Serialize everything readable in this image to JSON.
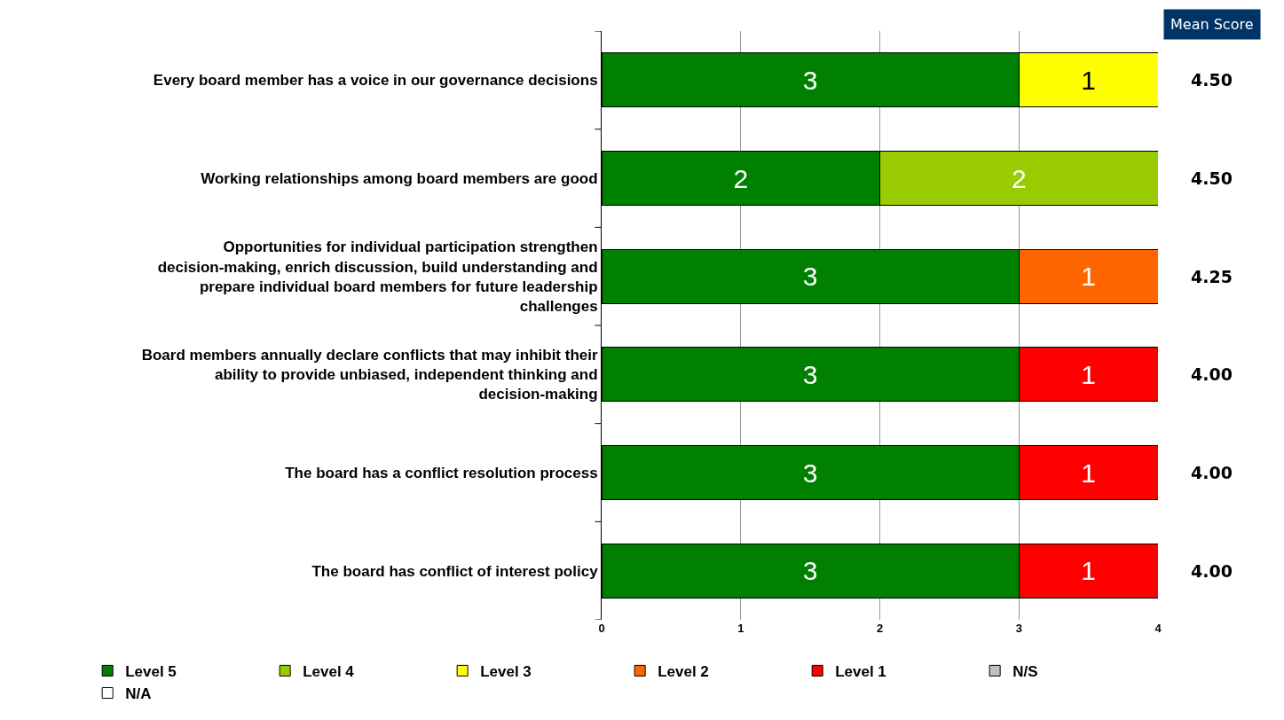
{
  "chart_data": {
    "type": "bar",
    "orientation": "horizontal",
    "stacked": true,
    "data_labels": true,
    "grid": "x",
    "legend": "bottom",
    "categories": [
      "Every board member has a voice in our governance decisions",
      "Working relationships among board members are good",
      "Opportunities for individual participation strengthen decision-making, enrich discussion, build understanding and prepare individual board members for future leadership challenges",
      "Board members annually declare conflicts that may inhibit their ability to provide unbiased, independent thinking and decision-making",
      "The board has a conflict resolution process",
      "The board has conflict of interest policy"
    ],
    "series": [
      {
        "name": "Level 5",
        "color": "#008000",
        "values": [
          3,
          2,
          3,
          3,
          3,
          3
        ]
      },
      {
        "name": "Level 4",
        "color": "#99cc00",
        "values": [
          null,
          2,
          null,
          null,
          null,
          null
        ]
      },
      {
        "name": "Level 3",
        "color": "#ffff00",
        "values": [
          1,
          null,
          null,
          null,
          null,
          null
        ]
      },
      {
        "name": "Level 2",
        "color": "#ff6600",
        "values": [
          null,
          null,
          1,
          null,
          null,
          null
        ]
      },
      {
        "name": "Level 1",
        "color": "#ff0000",
        "values": [
          null,
          null,
          null,
          1,
          1,
          1
        ]
      },
      {
        "name": "N/S",
        "color": "#c0c0c0",
        "values": [
          null,
          null,
          null,
          null,
          null,
          null
        ]
      },
      {
        "name": "N/A",
        "color": "#ffffff",
        "values": [
          null,
          null,
          null,
          null,
          null,
          null
        ]
      }
    ],
    "xlim": [
      0,
      4
    ],
    "xticks": [
      0,
      1,
      2,
      3,
      4
    ],
    "annotations": [
      "Mean Score",
      "4.50",
      "4.50",
      "4.25",
      "4.00",
      "4.00",
      "4.00"
    ]
  }
}
